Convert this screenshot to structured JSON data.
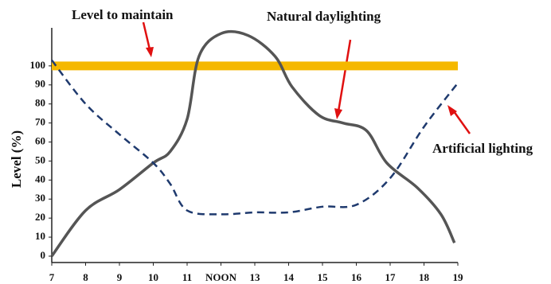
{
  "chart_data": {
    "type": "line",
    "ylabel": "Level (%)",
    "xlim": [
      7,
      19
    ],
    "ylim": [
      0,
      120
    ],
    "xticks": [
      7,
      8,
      9,
      10,
      11,
      {
        "value": 12,
        "label": "NOON"
      },
      13,
      14,
      15,
      16,
      17,
      18,
      19
    ],
    "yticks": [
      0,
      10,
      20,
      30,
      40,
      50,
      60,
      70,
      80,
      90,
      100
    ],
    "annotations": [
      "Level to maintain",
      "Natural daylighting",
      "Artificial lighting"
    ],
    "series": [
      {
        "name": "Level to maintain",
        "color": "#f5b800",
        "style": "solid",
        "x": [
          7,
          19
        ],
        "values": [
          100,
          100
        ]
      },
      {
        "name": "Natural daylighting",
        "color": "#555555",
        "style": "solid",
        "x": [
          7,
          8,
          9,
          10,
          10.5,
          11,
          11.35,
          12,
          12.8,
          13.6,
          14.1,
          14.9,
          15.6,
          16.3,
          16.9,
          17.8,
          18.5,
          18.9
        ],
        "values": [
          0,
          24,
          35,
          49,
          55,
          72,
          105,
          117,
          116,
          105,
          89,
          74,
          70,
          66,
          49,
          36,
          22,
          7
        ]
      },
      {
        "name": "Artificial lighting",
        "color": "#1f3a6e",
        "style": "dashed",
        "x": [
          7,
          8,
          9,
          10,
          10.5,
          11,
          12,
          13,
          14,
          15,
          16,
          17,
          18,
          19
        ],
        "values": [
          103,
          80,
          64,
          49,
          38,
          24,
          22,
          23,
          23,
          26,
          27,
          41,
          68,
          91
        ]
      }
    ]
  }
}
